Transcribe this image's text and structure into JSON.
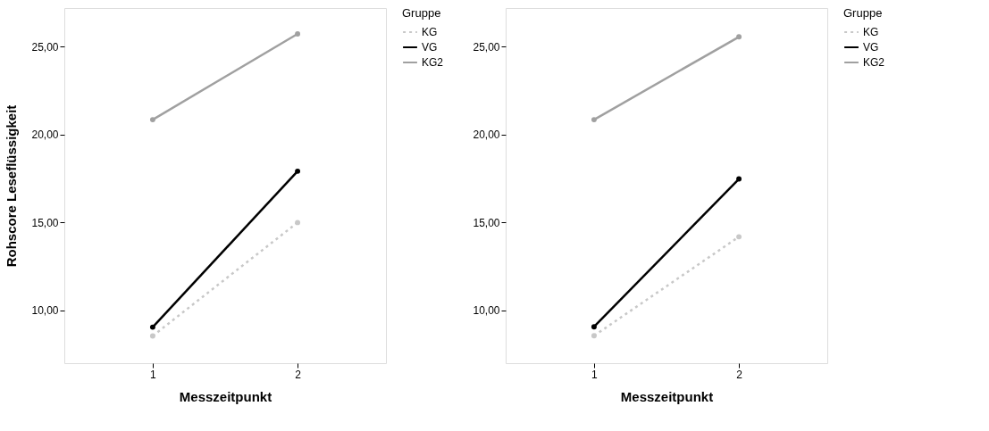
{
  "chart_data": [
    {
      "type": "line",
      "xlabel": "Messzeitpunkt",
      "ylabel": "Rohscore Leseflüssigkeit",
      "legend_title": "Gruppe",
      "legend": "right",
      "grid": false,
      "marker": "circle",
      "categories": [
        "1",
        "2"
      ],
      "ylim": [
        7,
        27.2
      ],
      "yticks": [
        {
          "value": 10,
          "label": "10,00"
        },
        {
          "value": 15,
          "label": "15,00"
        },
        {
          "value": 20,
          "label": "20,00"
        },
        {
          "value": 25,
          "label": "25,00"
        }
      ],
      "series": [
        {
          "name": "KG",
          "color": "#c8c8c8",
          "line_style": "dotted",
          "values": [
            8.55,
            15.0
          ]
        },
        {
          "name": "VG",
          "color": "#000000",
          "line_style": "solid",
          "values": [
            9.05,
            17.92
          ]
        },
        {
          "name": "KG2",
          "color": "#a0a0a0",
          "line_style": "solid",
          "values": [
            20.85,
            25.73
          ]
        }
      ]
    },
    {
      "type": "line",
      "xlabel": "Messzeitpunkt",
      "legend_title": "Gruppe",
      "legend": "right",
      "grid": false,
      "marker": "circle",
      "categories": [
        "1",
        "2"
      ],
      "ylim": [
        7,
        27.2
      ],
      "yticks": [
        {
          "value": 10,
          "label": "10,00"
        },
        {
          "value": 15,
          "label": "15,00"
        },
        {
          "value": 20,
          "label": "20,00"
        },
        {
          "value": 25,
          "label": "25,00"
        }
      ],
      "series": [
        {
          "name": "KG",
          "color": "#c8c8c8",
          "line_style": "dotted",
          "values": [
            8.56,
            14.19
          ]
        },
        {
          "name": "VG",
          "color": "#000000",
          "line_style": "solid",
          "values": [
            9.07,
            17.48
          ]
        },
        {
          "name": "KG2",
          "color": "#a0a0a0",
          "line_style": "solid",
          "values": [
            20.85,
            25.56
          ]
        }
      ]
    }
  ]
}
